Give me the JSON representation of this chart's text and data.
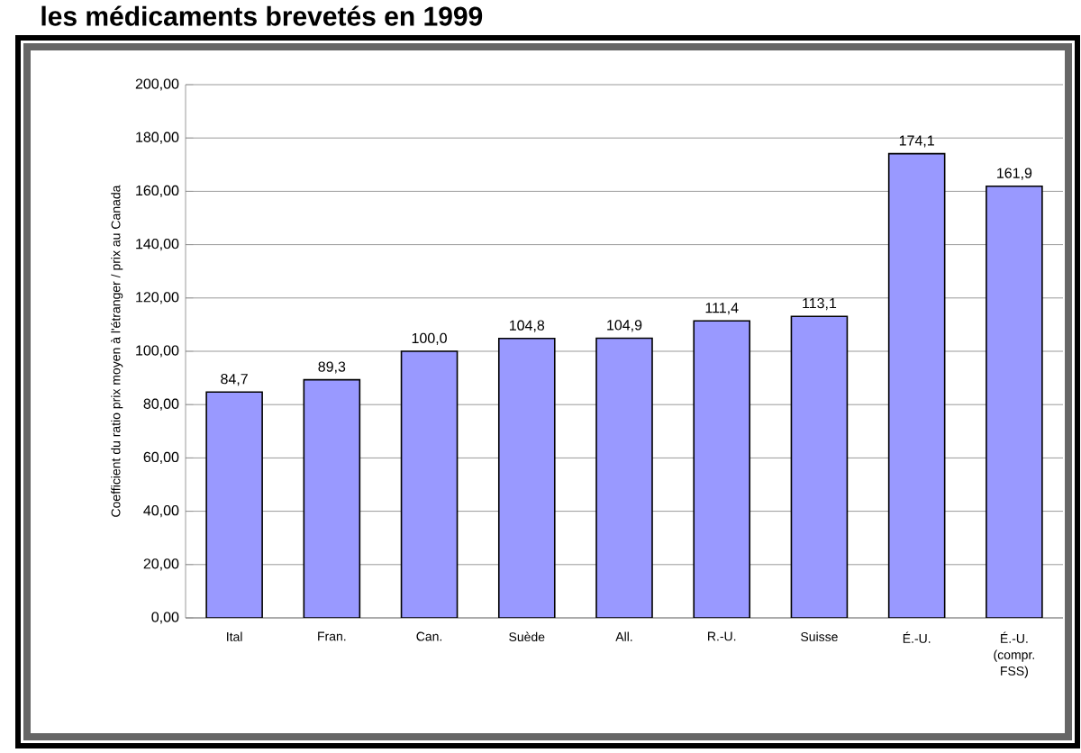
{
  "chart_data": {
    "type": "bar",
    "title": "les médicaments brevetés en 1999",
    "ylabel": "Coefficient du ratio prix moyen à l'étranger / prix au Canada",
    "categories": [
      "Ital",
      "Fran.",
      "Can.",
      "Suède",
      "All.",
      "R.-U.",
      "Suisse",
      "É.-U.",
      "É.-U. (compr. FSS)"
    ],
    "values": [
      84.7,
      89.3,
      100.0,
      104.8,
      104.9,
      111.4,
      113.1,
      174.1,
      161.9
    ],
    "value_labels": [
      "84,7",
      "89,3",
      "100,0",
      "104,8",
      "104,9",
      "111,4",
      "113,1",
      "174,1",
      "161,9"
    ],
    "color": "#9999ff",
    "ylim": [
      0,
      200
    ],
    "yticks": [
      {
        "value": 0,
        "label": "0,00"
      },
      {
        "value": 20,
        "label": "20,00"
      },
      {
        "value": 40,
        "label": "40,00"
      },
      {
        "value": 60,
        "label": "60,00"
      },
      {
        "value": 80,
        "label": "80,00"
      },
      {
        "value": 100,
        "label": "100,00"
      },
      {
        "value": 120,
        "label": "120,00"
      },
      {
        "value": 140,
        "label": "140,00"
      },
      {
        "value": 160,
        "label": "160,00"
      },
      {
        "value": 180,
        "label": "180,00"
      },
      {
        "value": 200,
        "label": "200,00"
      }
    ],
    "grid": "y"
  }
}
